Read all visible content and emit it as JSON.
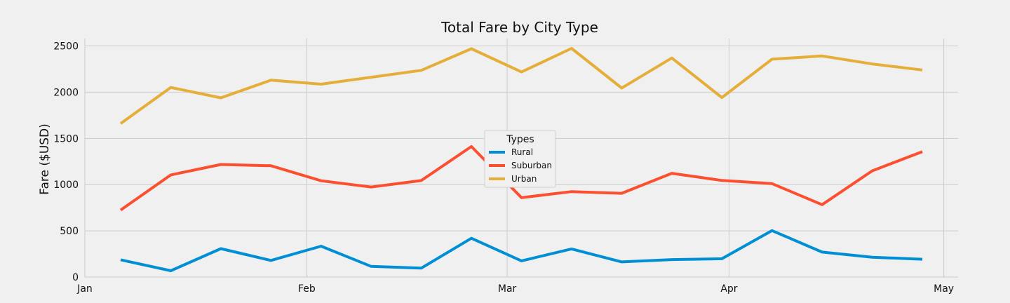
{
  "chart_data": {
    "type": "line",
    "title": "Total Fare by City Type",
    "xlabel": "",
    "ylabel": "Fare ($USD)",
    "x": [
      "2019-01-06",
      "2019-01-13",
      "2019-01-20",
      "2019-01-27",
      "2019-02-03",
      "2019-02-10",
      "2019-02-17",
      "2019-02-24",
      "2019-03-03",
      "2019-03-10",
      "2019-03-17",
      "2019-03-24",
      "2019-03-31",
      "2019-04-07",
      "2019-04-14",
      "2019-04-21",
      "2019-04-28"
    ],
    "xlim": [
      "2019-01-01",
      "2019-05-03"
    ],
    "ylim": [
      0,
      2580
    ],
    "x_ticks": [
      {
        "date": "2019-01-01",
        "label": "Jan"
      },
      {
        "date": "2019-02-01",
        "label": "Feb"
      },
      {
        "date": "2019-03-01",
        "label": "Mar"
      },
      {
        "date": "2019-04-01",
        "label": "Apr"
      },
      {
        "date": "2019-05-01",
        "label": "May"
      }
    ],
    "y_ticks": [
      0,
      500,
      1000,
      1500,
      2000,
      2500
    ],
    "grid": true,
    "legend": {
      "title": "Types",
      "position": "center"
    },
    "series": [
      {
        "name": "Rural",
        "color": "#008fd5",
        "values": [
          187,
          68,
          307,
          180,
          334,
          115,
          96,
          420,
          175,
          304,
          164,
          189,
          198,
          502,
          270,
          215,
          193
        ]
      },
      {
        "name": "Suburban",
        "color": "#fc4f30",
        "values": [
          725,
          1105,
          1218,
          1204,
          1042,
          974,
          1044,
          1412,
          859,
          924,
          906,
          1122,
          1045,
          1011,
          783,
          1149,
          1357
        ]
      },
      {
        "name": "Urban",
        "color": "#e5ae38",
        "values": [
          1661,
          2051,
          1939,
          2130,
          2087,
          2162,
          2236,
          2470,
          2219,
          2474,
          2045,
          2370,
          1942,
          2357,
          2392,
          2305,
          2240
        ]
      }
    ]
  }
}
